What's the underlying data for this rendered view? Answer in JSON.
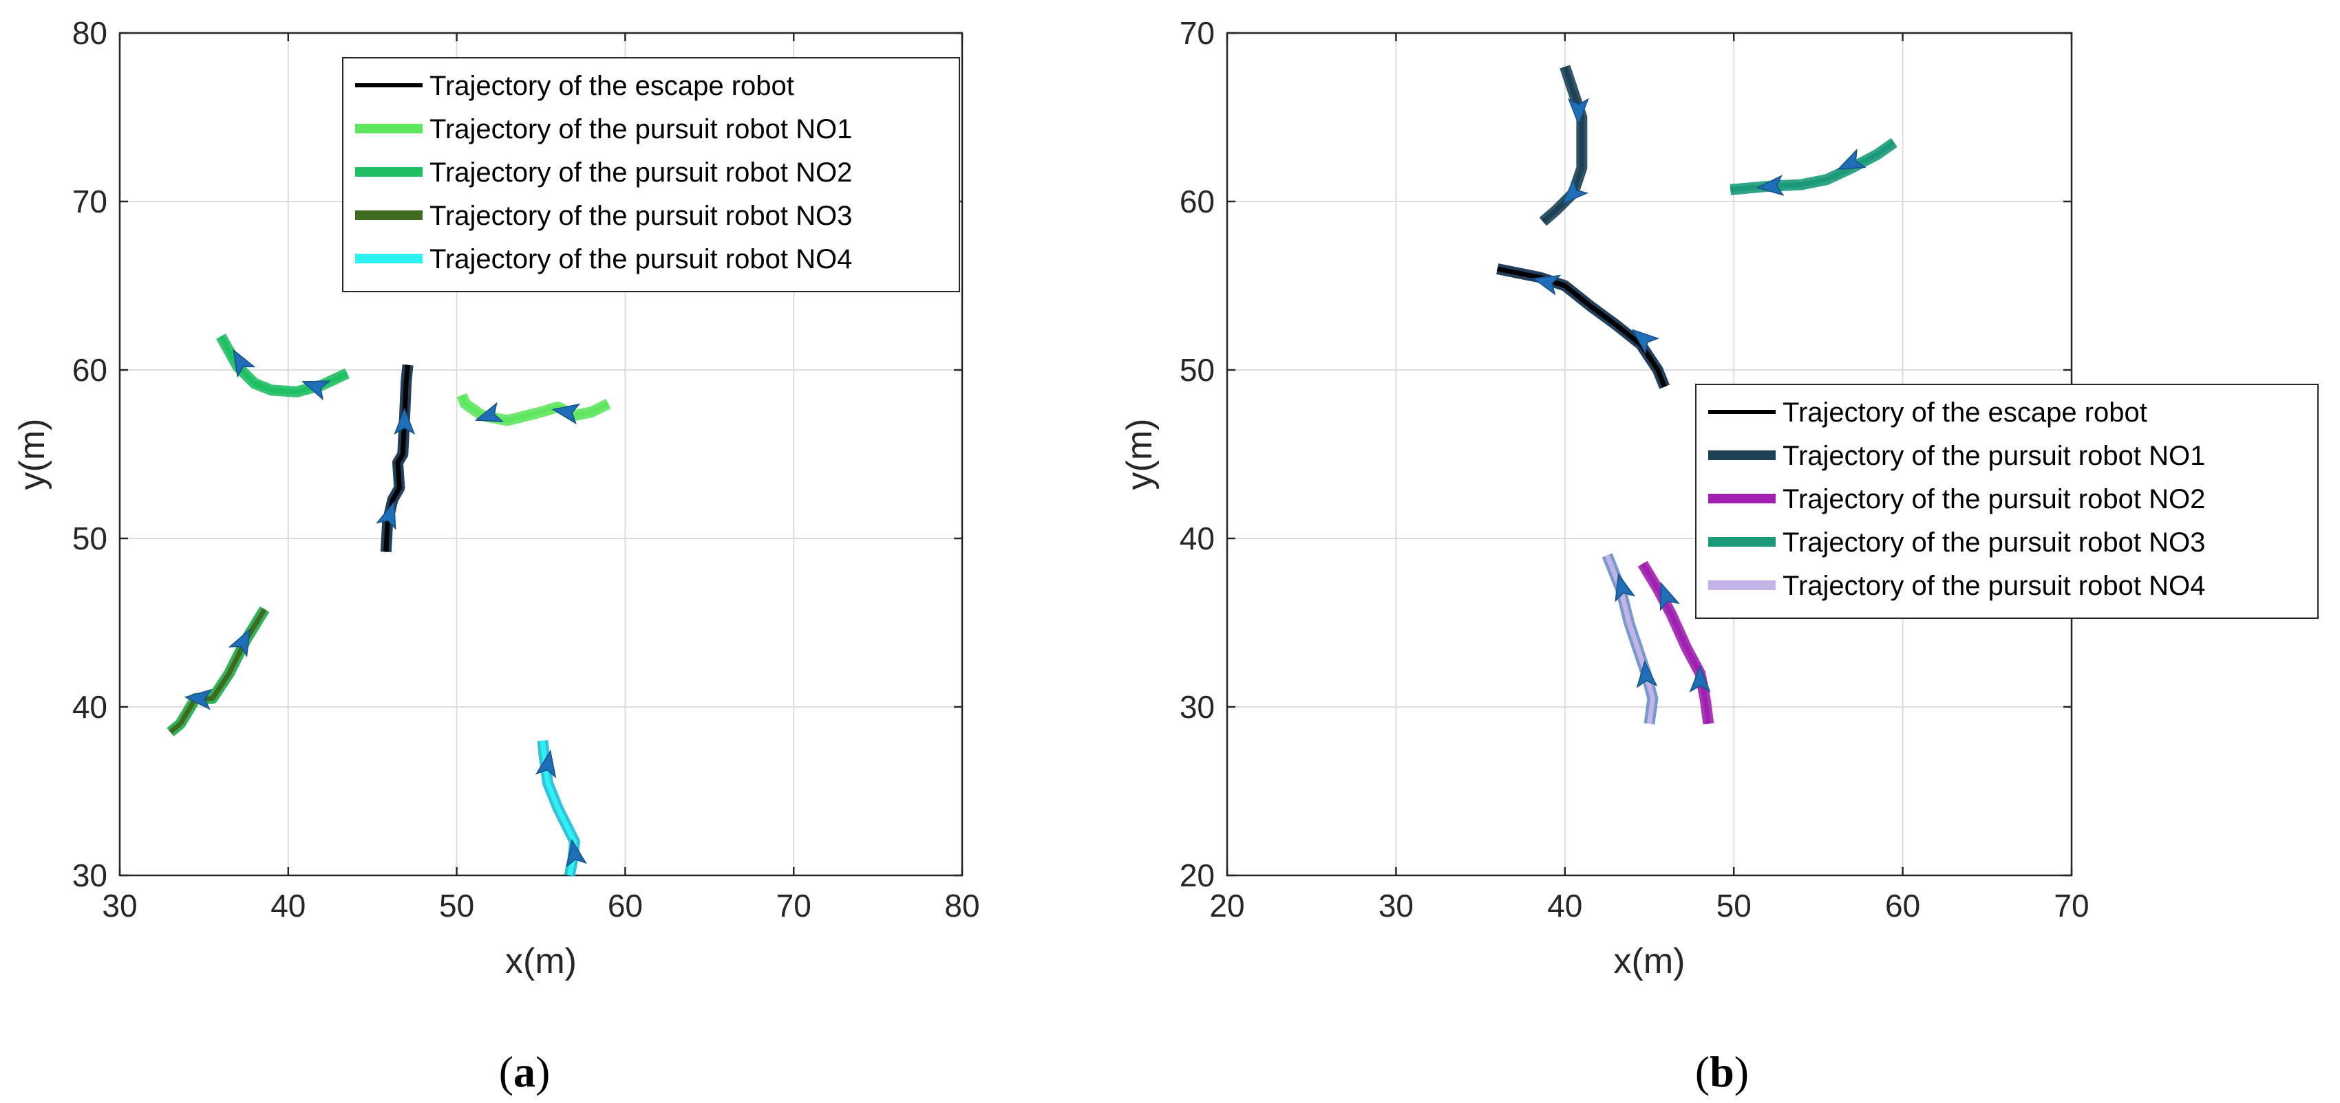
{
  "chart_data": [
    {
      "type": "line",
      "caption": [
        "(",
        "a",
        ")"
      ],
      "xlabel": "x(m)",
      "ylabel": "y(m)",
      "xlim": [
        30,
        80
      ],
      "ylim": [
        30,
        80
      ],
      "xticks": [
        30,
        40,
        50,
        60,
        70,
        80
      ],
      "yticks": [
        30,
        40,
        50,
        60,
        70,
        80
      ],
      "grid": true,
      "legend_position": "top-right",
      "series": [
        {
          "name": "Trajectory of the escape robot",
          "color": "#000000",
          "tube": "#0a2a4a",
          "points": [
            [
              45.8,
              49.2
            ],
            [
              45.9,
              51.0
            ],
            [
              46.2,
              52.3
            ],
            [
              46.6,
              53.0
            ],
            [
              46.5,
              54.5
            ],
            [
              46.8,
              55.0
            ],
            [
              46.9,
              57.0
            ],
            [
              47.0,
              59.3
            ],
            [
              47.1,
              60.3
            ]
          ],
          "arrows": [
            [
              46.0,
              51.3,
              72
            ],
            [
              46.9,
              56.8,
              90
            ]
          ]
        },
        {
          "name": "Trajectory of the pursuit robot NO1",
          "color": "#5ee65e",
          "tube": "#5ee65e",
          "points": [
            [
              59.0,
              58.0
            ],
            [
              58.0,
              57.5
            ],
            [
              57.0,
              57.3
            ],
            [
              56.0,
              57.8
            ],
            [
              55.0,
              57.5
            ],
            [
              53.0,
              57.0
            ],
            [
              51.5,
              57.3
            ],
            [
              50.5,
              58.0
            ],
            [
              50.3,
              58.5
            ]
          ],
          "arrows": [
            [
              52.0,
              57.3,
              198
            ],
            [
              56.6,
              57.5,
              170
            ]
          ]
        },
        {
          "name": "Trajectory of the pursuit robot NO2",
          "color": "#1fbf63",
          "tube": "#1fbf63",
          "points": [
            [
              43.5,
              59.8
            ],
            [
              42.0,
              59.1
            ],
            [
              40.5,
              58.7
            ],
            [
              39.0,
              58.8
            ],
            [
              38.0,
              59.2
            ],
            [
              37.0,
              60.2
            ],
            [
              36.0,
              62.0
            ]
          ],
          "arrows": [
            [
              41.7,
              59.0,
              160
            ],
            [
              37.2,
              60.4,
              120
            ]
          ]
        },
        {
          "name": "Trajectory of the pursuit robot NO3",
          "color": "#3f6b1f",
          "tube": "#1fa94a",
          "points": [
            [
              33.0,
              38.5
            ],
            [
              33.6,
              39.0
            ],
            [
              34.5,
              40.5
            ],
            [
              35.5,
              40.5
            ],
            [
              36.5,
              42.0
            ],
            [
              37.5,
              44.0
            ],
            [
              38.6,
              45.8
            ]
          ],
          "arrows": [
            [
              34.8,
              40.5,
              175
            ],
            [
              37.3,
              43.8,
              62
            ]
          ]
        },
        {
          "name": "Trajectory of the pursuit robot NO4",
          "color": "#2ef2f2",
          "tube": "#1fb9d9",
          "points": [
            [
              56.7,
              30.0
            ],
            [
              56.9,
              31.0
            ],
            [
              57.0,
              32.0
            ],
            [
              56.5,
              33.0
            ],
            [
              56.0,
              34.0
            ],
            [
              55.4,
              35.5
            ],
            [
              55.2,
              37.0
            ],
            [
              55.1,
              38.0
            ]
          ],
          "arrows": [
            [
              57.0,
              31.2,
              100
            ],
            [
              55.4,
              36.5,
              80
            ]
          ]
        }
      ]
    },
    {
      "type": "line",
      "caption": [
        "(",
        "b",
        ")"
      ],
      "xlabel": "x(m)",
      "ylabel": "y(m)",
      "xlim": [
        20,
        70
      ],
      "ylim": [
        20,
        70
      ],
      "xticks": [
        20,
        30,
        40,
        50,
        60,
        70
      ],
      "yticks": [
        20,
        30,
        40,
        50,
        60,
        70
      ],
      "grid": true,
      "legend_position": "right",
      "series": [
        {
          "name": "Trajectory of the escape robot",
          "color": "#000000",
          "tube": "#0a2a4a",
          "points": [
            [
              45.9,
              49.0
            ],
            [
              45.5,
              50.0
            ],
            [
              44.5,
              51.5
            ],
            [
              43.0,
              52.7
            ],
            [
              41.5,
              53.8
            ],
            [
              40.0,
              55.0
            ],
            [
              38.5,
              55.5
            ],
            [
              37.0,
              55.8
            ],
            [
              36.0,
              56.0
            ]
          ],
          "arrows": [
            [
              44.7,
              51.8,
              140
            ],
            [
              39.0,
              55.2,
              165
            ]
          ]
        },
        {
          "name": "Trajectory of the pursuit robot NO1",
          "color": "#1c4155",
          "tube": "#1c4155",
          "points": [
            [
              38.7,
              58.8
            ],
            [
              39.5,
              59.5
            ],
            [
              40.5,
              60.5
            ],
            [
              41.0,
              62.0
            ],
            [
              41.0,
              63.5
            ],
            [
              41.0,
              65.0
            ],
            [
              40.5,
              66.5
            ],
            [
              40.0,
              68.0
            ]
          ],
          "arrows": [
            [
              40.5,
              60.5,
              225
            ],
            [
              40.8,
              65.5,
              270
            ]
          ]
        },
        {
          "name": "Trajectory of the pursuit robot NO2",
          "color": "#a020b0",
          "tube": "#a020b0",
          "points": [
            [
              48.5,
              29.0
            ],
            [
              48.3,
              30.5
            ],
            [
              48.0,
              32.0
            ],
            [
              47.2,
              33.5
            ],
            [
              46.3,
              35.5
            ],
            [
              45.5,
              37.0
            ],
            [
              44.6,
              38.5
            ]
          ],
          "arrows": [
            [
              48.0,
              31.5,
              90
            ],
            [
              46.0,
              36.5,
              110
            ]
          ]
        },
        {
          "name": "Trajectory of the pursuit robot NO4",
          "color": "#c3b3e6",
          "tube": "#6a8fc8",
          "points": [
            [
              45.0,
              29.0
            ],
            [
              45.2,
              30.5
            ],
            [
              44.8,
              32.0
            ],
            [
              44.3,
              33.5
            ],
            [
              43.8,
              35.0
            ],
            [
              43.3,
              37.0
            ],
            [
              42.5,
              39.0
            ]
          ],
          "arrows": [
            [
              44.8,
              31.8,
              95
            ],
            [
              43.4,
              37.0,
              105
            ]
          ]
        },
        {
          "name": "Trajectory of the pursuit robot NO3",
          "color": "#1a9a7a",
          "tube": "#1a9a7a",
          "points": [
            [
              59.5,
              63.5
            ],
            [
              58.5,
              62.8
            ],
            [
              57.0,
              62.0
            ],
            [
              55.5,
              61.3
            ],
            [
              54.0,
              61.0
            ],
            [
              52.0,
              60.9
            ],
            [
              49.8,
              60.7
            ]
          ],
          "arrows": [
            [
              57.0,
              62.3,
              205
            ],
            [
              52.3,
              60.9,
              185
            ]
          ]
        }
      ],
      "legend_order": [
        0,
        1,
        2,
        4,
        3
      ]
    }
  ]
}
